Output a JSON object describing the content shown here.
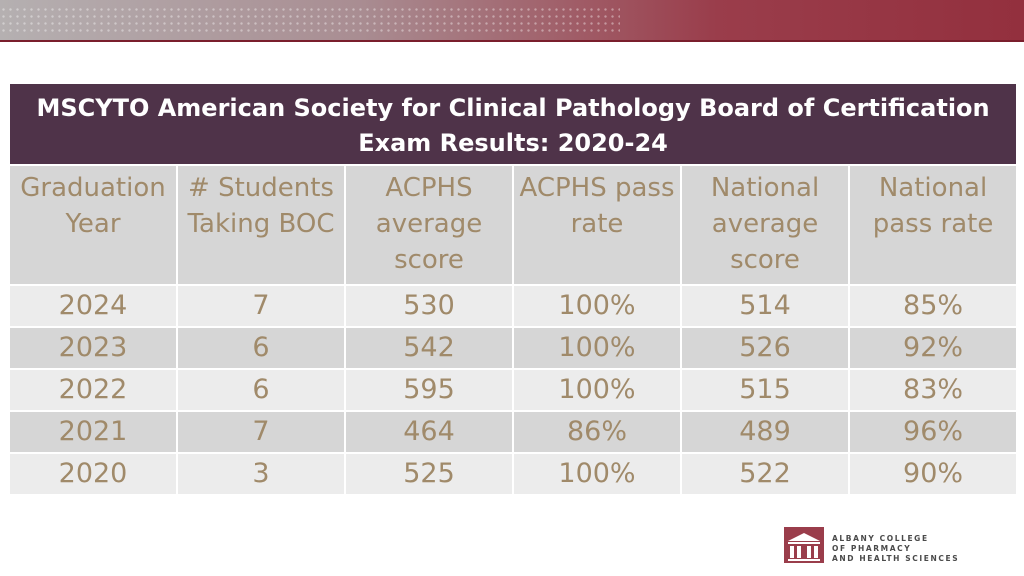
{
  "title": "MSCYTO American Society for Clinical Pathology Board of Certification Exam Results: 2020-24",
  "columns": [
    "Graduation Year",
    "# Students Taking BOC",
    "ACPHS average score",
    "ACPHS pass rate",
    "National average score",
    "National pass rate"
  ],
  "rows": [
    [
      "2024",
      "7",
      "530",
      "100%",
      "514",
      "85%"
    ],
    [
      "2023",
      "6",
      "542",
      "100%",
      "526",
      "92%"
    ],
    [
      "2022",
      "6",
      "595",
      "100%",
      "515",
      "83%"
    ],
    [
      "2021",
      "7",
      "464",
      "86%",
      "489",
      "96%"
    ],
    [
      "2020",
      "3",
      "525",
      "100%",
      "522",
      "90%"
    ]
  ],
  "logo": {
    "line1": "ALBANY COLLEGE",
    "line2": "OF PHARMACY",
    "line3": "AND HEALTH SCIENCES"
  },
  "colors": {
    "title_bg": "#4f3349",
    "brand": "#9a3d4b",
    "text": "#a08a6a"
  }
}
